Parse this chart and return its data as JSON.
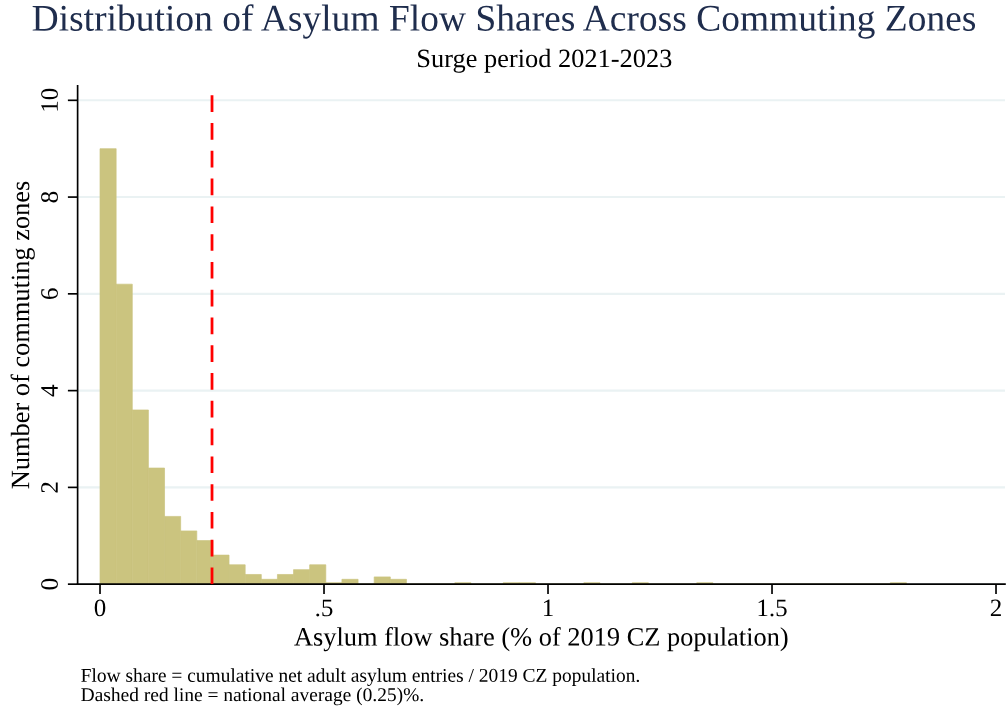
{
  "chart_data": {
    "type": "histogram",
    "title": "Distribution of Asylum Flow Shares Across Commuting Zones",
    "subtitle": "Surge period 2021-2023",
    "xlabel": "Asylum flow share (% of 2019 CZ population)",
    "ylabel": "Number of commuting zones",
    "bins": [
      0,
      0.036,
      0.072,
      0.108,
      0.144,
      0.18,
      0.216,
      0.252,
      0.288,
      0.324,
      0.36,
      0.396,
      0.432,
      0.468,
      0.504,
      0.54,
      0.576,
      0.612,
      0.648,
      0.684,
      0.72,
      0.756,
      0.792,
      0.828,
      0.864,
      0.9,
      0.936,
      0.972,
      1.008,
      1.044,
      1.08,
      1.116,
      1.152,
      1.188,
      1.224,
      1.26,
      1.296,
      1.332,
      1.368,
      1.404,
      1.44,
      1.476,
      1.512,
      1.548,
      1.584,
      1.62,
      1.656,
      1.692,
      1.728,
      1.764,
      1.8
    ],
    "values": [
      9.0,
      6.2,
      3.6,
      2.4,
      1.4,
      1.1,
      0.9,
      0.6,
      0.4,
      0.2,
      0.1,
      0.2,
      0.3,
      0.4,
      0.03,
      0.1,
      0,
      0.15,
      0.1,
      0,
      0,
      0,
      0.03,
      0,
      0,
      0.03,
      0.03,
      0,
      0,
      0,
      0.03,
      0,
      0,
      0.03,
      0,
      0,
      0,
      0.03,
      0,
      0,
      0,
      0,
      0,
      0,
      0,
      0,
      0,
      0,
      0,
      0.03
    ],
    "color": "#cbc47f",
    "xlim": [
      -0.05,
      2.02
    ],
    "xticks": [
      0,
      {
        "value": 0.5,
        "label": ".5"
      },
      1,
      1.5,
      2
    ],
    "ylim": [
      0,
      10.3
    ],
    "yticks": [
      0,
      2,
      4,
      6,
      8,
      10
    ],
    "grid": "y",
    "ref_lines": [
      {
        "axis": "x",
        "value": 0.25,
        "color": "#ff0000",
        "line_style": "dashed"
      }
    ],
    "annotations": [
      "Flow share = cumulative net adult asylum entries / 2019 CZ population.",
      "Dashed red line = national average (0.25)%."
    ]
  }
}
